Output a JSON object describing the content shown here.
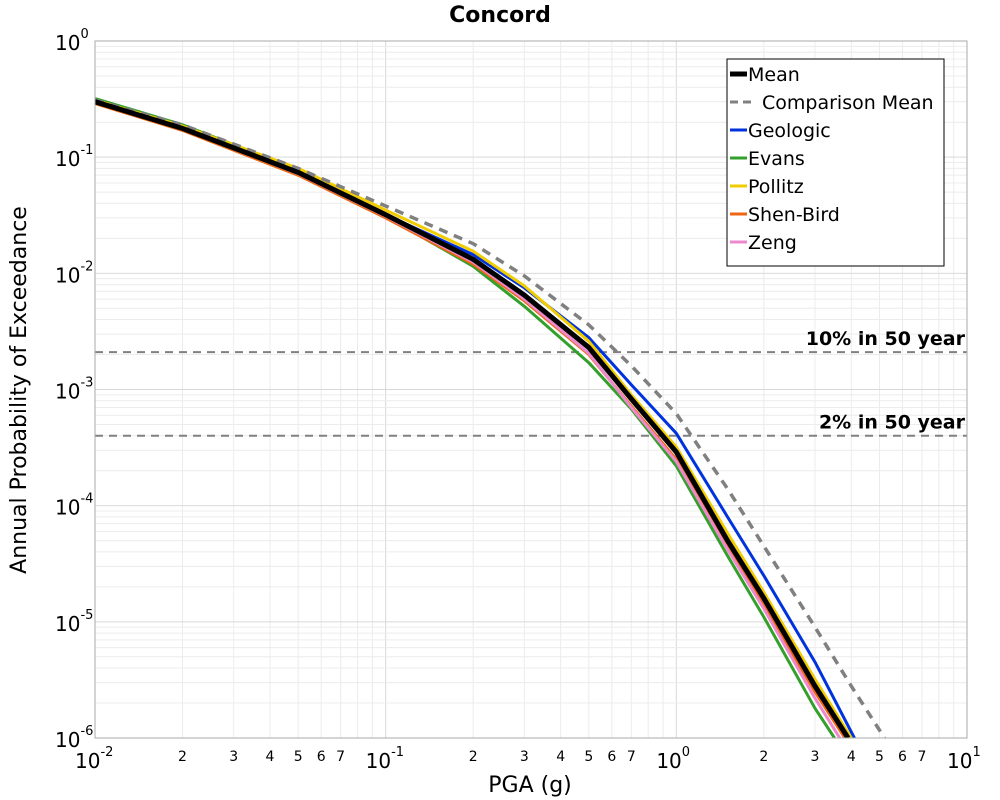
{
  "chart_data": {
    "type": "line",
    "title": "Concord",
    "xlabel": "PGA (g)",
    "ylabel": "Annual Probability of Exceedance",
    "xscale": "log",
    "yscale": "log",
    "xlim": [
      0.01,
      10
    ],
    "ylim": [
      1e-06,
      1
    ],
    "grid": true,
    "legend_position": "top-right",
    "x_major_ticks": [
      {
        "value": 0.01,
        "base": "10",
        "exp": "-2"
      },
      {
        "value": 0.1,
        "base": "10",
        "exp": "-1"
      },
      {
        "value": 1,
        "base": "10",
        "exp": "0"
      },
      {
        "value": 10,
        "base": "10",
        "exp": "1"
      }
    ],
    "x_minor_tick_labels": [
      "2",
      "3",
      "4",
      "5",
      "6",
      "7"
    ],
    "y_major_ticks": [
      {
        "value": 1,
        "base": "10",
        "exp": "0"
      },
      {
        "value": 0.1,
        "base": "10",
        "exp": "-1"
      },
      {
        "value": 0.01,
        "base": "10",
        "exp": "-2"
      },
      {
        "value": 0.001,
        "base": "10",
        "exp": "-3"
      },
      {
        "value": 0.0001,
        "base": "10",
        "exp": "-4"
      },
      {
        "value": 1e-05,
        "base": "10",
        "exp": "-5"
      },
      {
        "value": 1e-06,
        "base": "10",
        "exp": "-6"
      }
    ],
    "reference_lines": [
      {
        "label": "10% in 50 year",
        "y": 0.0021,
        "color": "#808080"
      },
      {
        "label": "2% in 50 year",
        "y": 0.0004,
        "color": "#808080"
      }
    ],
    "series": [
      {
        "name": "Geologic",
        "color": "#0033dd",
        "dash": "none",
        "width": 3,
        "x": [
          0.01,
          0.02,
          0.05,
          0.1,
          0.2,
          0.3,
          0.5,
          0.7,
          1.0,
          1.5,
          2.0,
          3.0,
          4.1
        ],
        "y": [
          0.3,
          0.18,
          0.075,
          0.032,
          0.0145,
          0.0075,
          0.0028,
          0.0011,
          0.00042,
          8e-05,
          2.5e-05,
          4.5e-06,
          1e-06
        ]
      },
      {
        "name": "Evans",
        "color": "#33a02c",
        "dash": "none",
        "width": 3,
        "x": [
          0.01,
          0.02,
          0.05,
          0.1,
          0.2,
          0.3,
          0.5,
          0.7,
          1.0,
          1.5,
          2.0,
          3.0,
          3.5
        ],
        "y": [
          0.32,
          0.19,
          0.078,
          0.031,
          0.0115,
          0.0052,
          0.0017,
          0.00068,
          0.00022,
          3.7e-05,
          1.1e-05,
          1.8e-06,
          1e-06
        ]
      },
      {
        "name": "Pollitz",
        "color": "#f0cc00",
        "dash": "none",
        "width": 3,
        "x": [
          0.01,
          0.02,
          0.05,
          0.1,
          0.2,
          0.3,
          0.5,
          0.7,
          1.0,
          1.5,
          2.0,
          3.0,
          4.0
        ],
        "y": [
          0.31,
          0.185,
          0.08,
          0.035,
          0.0155,
          0.0078,
          0.0026,
          0.0009,
          0.00032,
          5.8e-05,
          1.8e-05,
          3.2e-06,
          1e-06
        ]
      },
      {
        "name": "Shen-Bird",
        "color": "#ee6611",
        "dash": "none",
        "width": 3,
        "x": [
          0.01,
          0.02,
          0.05,
          0.1,
          0.2,
          0.3,
          0.5,
          0.7,
          1.0,
          1.5,
          2.0,
          3.0,
          3.8
        ],
        "y": [
          0.29,
          0.17,
          0.07,
          0.03,
          0.012,
          0.0058,
          0.002,
          0.00072,
          0.00025,
          4.5e-05,
          1.4e-05,
          2.5e-06,
          1e-06
        ]
      },
      {
        "name": "Zeng",
        "color": "#ee88cc",
        "dash": "none",
        "width": 3,
        "x": [
          0.01,
          0.02,
          0.05,
          0.1,
          0.2,
          0.3,
          0.5,
          0.7,
          1.0,
          1.5,
          2.0,
          3.0,
          3.65
        ],
        "y": [
          0.3,
          0.175,
          0.072,
          0.031,
          0.0125,
          0.006,
          0.00205,
          0.0007,
          0.00024,
          4.2e-05,
          1.3e-05,
          2.2e-06,
          1e-06
        ]
      },
      {
        "name": "Comparison Mean",
        "color": "#808080",
        "dash": "9,7",
        "width": 3.5,
        "x": [
          0.01,
          0.02,
          0.05,
          0.1,
          0.2,
          0.3,
          0.5,
          0.7,
          1.0,
          1.5,
          2.0,
          3.0,
          4.0,
          5.2
        ],
        "y": [
          0.31,
          0.19,
          0.08,
          0.038,
          0.018,
          0.0095,
          0.0036,
          0.0016,
          0.00062,
          0.00014,
          4.5e-05,
          9e-06,
          2.8e-06,
          1e-06
        ]
      },
      {
        "name": "Mean",
        "color": "#000000",
        "dash": "none",
        "width": 5,
        "x": [
          0.01,
          0.02,
          0.05,
          0.1,
          0.2,
          0.3,
          0.5,
          0.7,
          1.0,
          1.5,
          2.0,
          3.0,
          3.9
        ],
        "y": [
          0.3,
          0.177,
          0.074,
          0.032,
          0.0132,
          0.0065,
          0.0023,
          0.00083,
          0.00029,
          5e-05,
          1.6e-05,
          2.8e-06,
          1e-06
        ]
      }
    ],
    "legend_order": [
      "Mean",
      "Comparison Mean",
      "Geologic",
      "Evans",
      "Pollitz",
      "Shen-Bird",
      "Zeng"
    ]
  }
}
